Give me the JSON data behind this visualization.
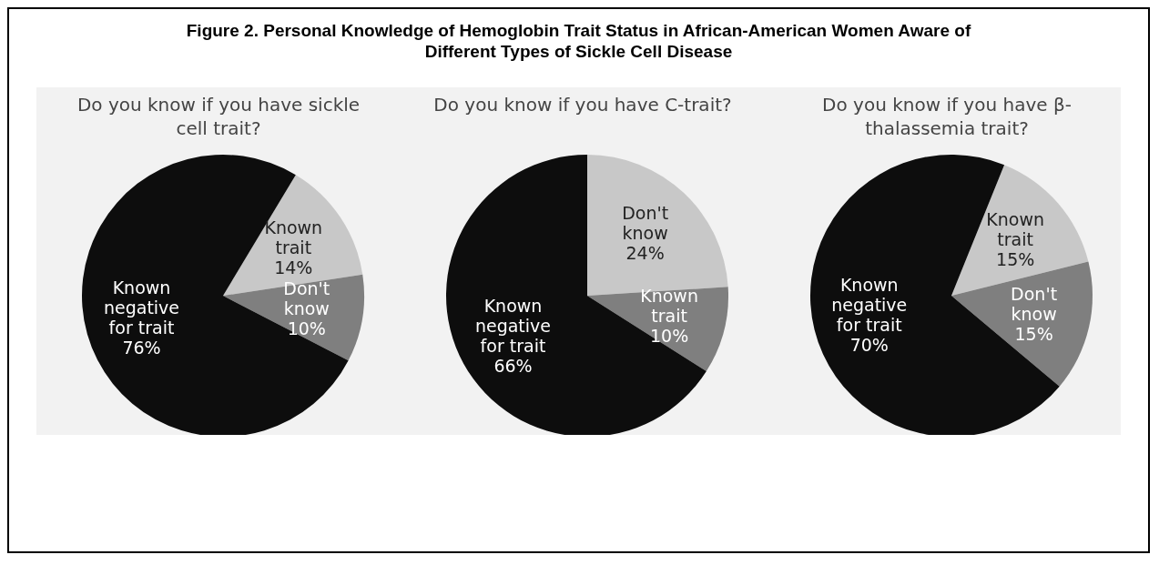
{
  "chart_data": [
    {
      "type": "pie",
      "title": "Do you know if you have sickle cell trait?",
      "annotations": [
        "Figure 2. Personal Knowledge of Hemoglobin Trait Status in African-American Women Aware of Different Types of Sickle Cell Disease"
      ],
      "categories": [
        "Known trait",
        "Don't know",
        "Known negative for trait"
      ],
      "values": [
        14,
        10,
        76
      ],
      "colors": [
        "#c8c8c8",
        "#7f7f7f",
        "#0d0d0d"
      ],
      "value_labels": [
        "14%",
        "10%",
        "76%"
      ],
      "legend": false
    },
    {
      "type": "pie",
      "title": "Do you know if you have C-trait?",
      "categories": [
        "Don't know",
        "Known trait",
        "Known negative for trait"
      ],
      "values": [
        24,
        10,
        66
      ],
      "colors": [
        "#c8c8c8",
        "#7f7f7f",
        "#0d0d0d"
      ],
      "value_labels": [
        "24%",
        "10%",
        "66%"
      ],
      "legend": false
    },
    {
      "type": "pie",
      "title": "Do you know if you have β-thalassemia trait?",
      "categories": [
        "Known trait",
        "Don't know",
        "Known negative for trait"
      ],
      "values": [
        15,
        15,
        70
      ],
      "colors": [
        "#c8c8c8",
        "#7f7f7f",
        "#0d0d0d"
      ],
      "value_labels": [
        "15%",
        "15%",
        "70%"
      ],
      "legend": false
    }
  ]
}
